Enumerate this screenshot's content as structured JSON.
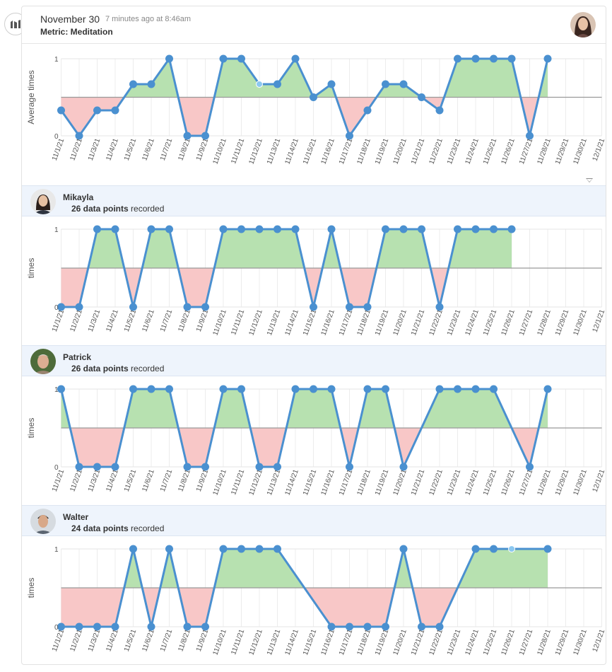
{
  "app": {
    "metric_icon": "bar-chart-icon"
  },
  "header": {
    "date": "November 30",
    "time_ago": "7 minutes ago at 8:46am",
    "metric": "Metric: Meditation"
  },
  "x_labels": [
    "11/1/21",
    "11/2/21",
    "11/3/21",
    "11/4/21",
    "11/5/21",
    "11/6/21",
    "11/7/21",
    "11/8/21",
    "11/9/21",
    "11/10/21",
    "11/11/21",
    "11/12/21",
    "11/13/21",
    "11/14/21",
    "11/15/21",
    "11/16/21",
    "11/17/21",
    "11/18/21",
    "11/19/21",
    "11/20/21",
    "11/21/21",
    "11/22/21",
    "11/23/21",
    "11/24/21",
    "11/25/21",
    "11/26/21",
    "11/27/21",
    "11/28/21",
    "11/29/21",
    "11/30/21",
    "12/1/21"
  ],
  "colors": {
    "line": "#4a90d0",
    "above": "#b7e1b0",
    "below": "#f8c7c7",
    "baseline": "#999999",
    "highlight": "#8cc8f0"
  },
  "chart_data": [
    {
      "type": "line",
      "ylabel": "Average times",
      "yticks": [
        "0",
        "1"
      ],
      "ylim": [
        0,
        1
      ],
      "baseline": 0.5,
      "x": [
        "11/1/21",
        "11/2/21",
        "11/3/21",
        "11/4/21",
        "11/5/21",
        "11/6/21",
        "11/7/21",
        "11/8/21",
        "11/9/21",
        "11/10/21",
        "11/11/21",
        "11/12/21",
        "11/13/21",
        "11/14/21",
        "11/15/21",
        "11/16/21",
        "11/17/21",
        "11/18/21",
        "11/19/21",
        "11/20/21",
        "11/21/21",
        "11/22/21",
        "11/23/21",
        "11/24/21",
        "11/25/21",
        "11/26/21",
        "11/27/21",
        "11/28/21"
      ],
      "values": [
        0.33,
        0,
        0.33,
        0.33,
        0.67,
        0.67,
        1,
        0,
        0,
        1,
        1,
        0.67,
        0.67,
        1,
        0.5,
        0.67,
        0,
        0.33,
        0.67,
        0.67,
        0.5,
        0.33,
        1,
        1,
        1,
        1,
        0,
        1
      ],
      "highlight_index": 11
    },
    {
      "type": "line",
      "ylabel": "times",
      "yticks": [
        "0",
        "1"
      ],
      "ylim": [
        0,
        1
      ],
      "baseline": 0.5,
      "x": [
        "11/1/21",
        "11/2/21",
        "11/3/21",
        "11/4/21",
        "11/5/21",
        "11/6/21",
        "11/7/21",
        "11/8/21",
        "11/9/21",
        "11/10/21",
        "11/11/21",
        "11/12/21",
        "11/13/21",
        "11/14/21",
        "11/15/21",
        "11/16/21",
        "11/17/21",
        "11/18/21",
        "11/19/21",
        "11/20/21",
        "11/21/21",
        "11/22/21",
        "11/23/21",
        "11/24/21",
        "11/25/21",
        "11/26/21"
      ],
      "values": [
        0,
        0,
        1,
        1,
        0,
        1,
        1,
        0,
        0,
        1,
        1,
        1,
        1,
        1,
        0,
        1,
        0,
        0,
        1,
        1,
        1,
        0,
        1,
        1,
        1,
        1
      ],
      "highlight_index": -1
    },
    {
      "type": "line",
      "ylabel": "times",
      "yticks": [
        "0",
        "1"
      ],
      "ylim": [
        0,
        1
      ],
      "baseline": 0.5,
      "x": [
        "11/1/21",
        "11/2/21",
        "11/3/21",
        "11/4/21",
        "11/5/21",
        "11/6/21",
        "11/7/21",
        "11/8/21",
        "11/9/21",
        "11/10/21",
        "11/11/21",
        "11/12/21",
        "11/13/21",
        "11/14/21",
        "11/15/21",
        "11/16/21",
        "11/17/21",
        "11/18/21",
        "11/19/21",
        "11/20/21",
        "11/22/21",
        "11/23/21",
        "11/24/21",
        "11/25/21",
        "11/27/21",
        "11/28/21"
      ],
      "values": [
        1,
        0,
        0,
        0,
        1,
        1,
        1,
        0,
        0,
        1,
        1,
        0,
        0,
        1,
        1,
        1,
        0,
        1,
        1,
        0,
        1,
        1,
        1,
        1,
        0,
        1
      ],
      "highlight_index": -1
    },
    {
      "type": "line",
      "ylabel": "times",
      "yticks": [
        "0",
        "1"
      ],
      "ylim": [
        0,
        1
      ],
      "baseline": 0.5,
      "x": [
        "11/1/21",
        "11/2/21",
        "11/3/21",
        "11/4/21",
        "11/5/21",
        "11/6/21",
        "11/7/21",
        "11/8/21",
        "11/9/21",
        "11/10/21",
        "11/11/21",
        "11/12/21",
        "11/13/21",
        "11/16/21",
        "11/17/21",
        "11/18/21",
        "11/19/21",
        "11/20/21",
        "11/21/21",
        "11/22/21",
        "11/24/21",
        "11/25/21",
        "11/26/21",
        "11/28/21"
      ],
      "values": [
        0,
        0,
        0,
        0,
        1,
        0,
        1,
        0,
        0,
        1,
        1,
        1,
        1,
        0,
        0,
        0,
        0,
        1,
        0,
        0,
        1,
        1,
        1,
        1
      ],
      "highlight_index": 22
    }
  ],
  "people": [
    {
      "name": "Mikayla",
      "count": "26 data points",
      "suffix": "recorded",
      "avatar_icon": "user-avatar"
    },
    {
      "name": "Patrick",
      "count": "26 data points",
      "suffix": "recorded",
      "avatar_icon": "user-avatar"
    },
    {
      "name": "Walter",
      "count": "24 data points",
      "suffix": "recorded",
      "avatar_icon": "user-avatar"
    }
  ]
}
